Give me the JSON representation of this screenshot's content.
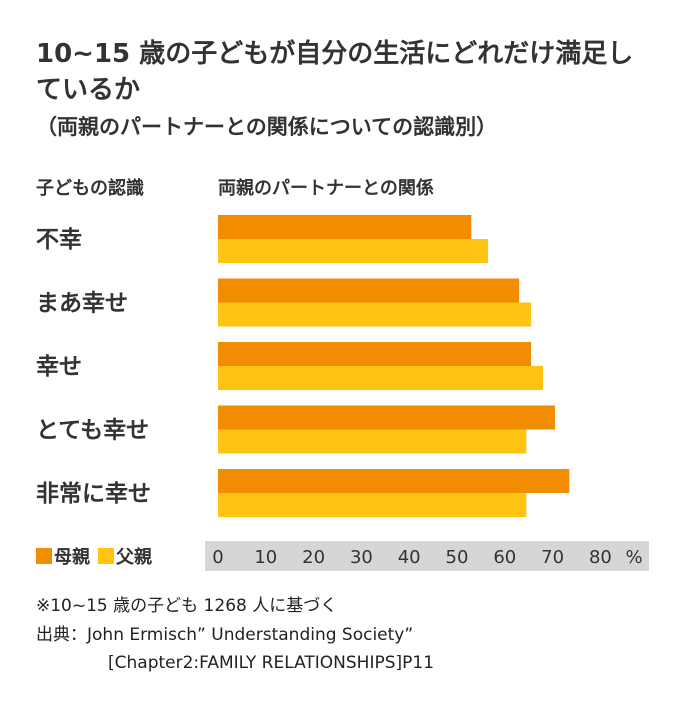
{
  "chart_data": {
    "type": "bar",
    "orientation": "horizontal",
    "title": "10~15 歳の子どもが自分の生活にどれだけ満足しているか",
    "subtitle": "（両親のパートナーとの関係についての認識別）",
    "row_header": "子どもの認識",
    "column_header": "両親のパートナーとの関係",
    "categories": [
      "不幸",
      "まあ幸せ",
      "幸せ",
      "とても幸せ",
      "非常に幸せ"
    ],
    "series": [
      {
        "name": "母親",
        "color": "#F28C00",
        "values": [
          53,
          63,
          65.5,
          70.5,
          73.5
        ]
      },
      {
        "name": "父親",
        "color": "#FFC312",
        "values": [
          56.5,
          65.5,
          68,
          64.5,
          64.5
        ]
      }
    ],
    "xlim": [
      0,
      90
    ],
    "x_ticks": [
      0,
      10,
      20,
      30,
      40,
      50,
      60,
      70,
      80
    ],
    "x_unit": "%",
    "grid": false,
    "legend_position": "bottom-left"
  },
  "footnote": "※10~15 歳の子ども 1268 人に基づく",
  "source_line1": "出典：John Ermisch” Understanding Society”",
  "source_line2": "[Chapter2:FAMILY RELATIONSHIPS]P11"
}
